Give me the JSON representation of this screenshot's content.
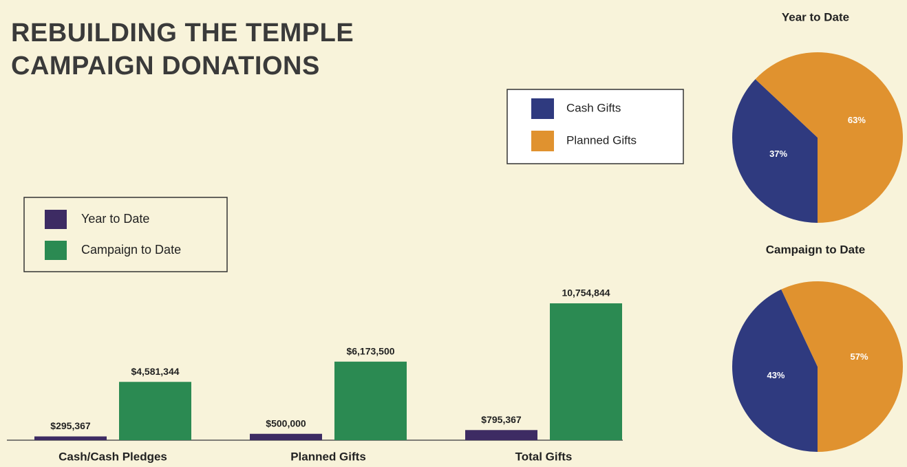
{
  "chart_data": [
    {
      "type": "bar",
      "title": "REBUILDING THE TEMPLE\nCAMPAIGN DONATIONS",
      "categories": [
        "Cash/Cash Pledges",
        "Planned Gifts",
        "Total Gifts"
      ],
      "series": [
        {
          "name": "Year to Date",
          "color": "#3d2b63",
          "values": [
            295367,
            500000,
            795367
          ],
          "value_labels": [
            "$295,367",
            "$500,000",
            "$795,367"
          ]
        },
        {
          "name": "Campaign to Date",
          "color": "#2b8a52",
          "values": [
            4581344,
            6173500,
            10754844
          ],
          "value_labels": [
            "$4,581,344",
            "$6,173,500",
            "10,754,844"
          ]
        }
      ],
      "ylim": [
        0,
        12000000
      ]
    },
    {
      "type": "pie",
      "categories": [
        "Cash Gifts",
        "Planned Gifts"
      ],
      "colors": [
        "#2f3a7f",
        "#e0922f"
      ],
      "series": [
        {
          "name": "Year to Date",
          "values": [
            37,
            63
          ],
          "value_labels": [
            "37%",
            "63%"
          ]
        },
        {
          "name": "Campaign to Date",
          "values": [
            43,
            57
          ],
          "value_labels": [
            "43%",
            "57%"
          ]
        }
      ]
    }
  ]
}
